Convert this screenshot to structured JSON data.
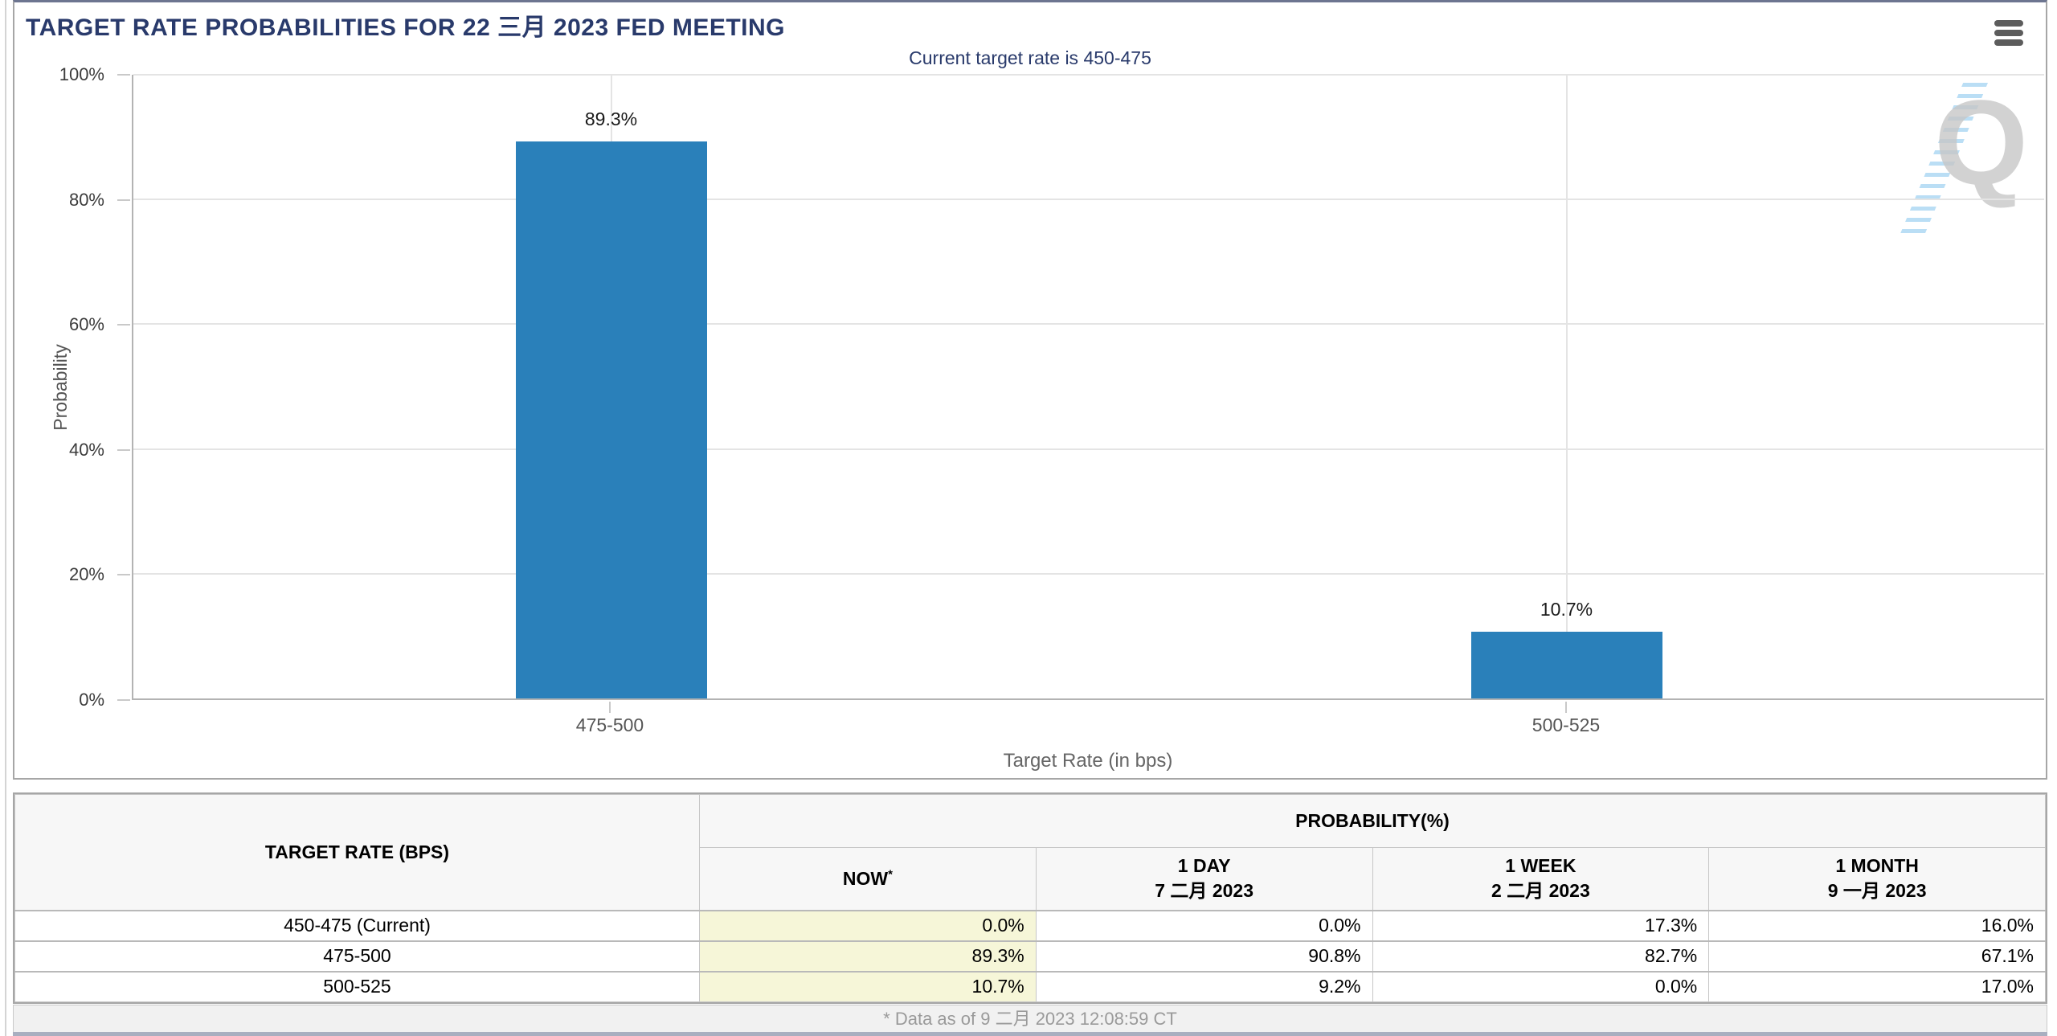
{
  "page": {
    "title": "TARGET RATE PROBABILITIES FOR 22 三月 2023 FED MEETING"
  },
  "icons": {
    "menu": "hamburger-icon",
    "watermark_letter": "Q"
  },
  "colors": {
    "accent_navy": "#293a6b",
    "bar_blue": "#2a80ba",
    "now_column_highlight": "#f6f6d8"
  },
  "chart_data": {
    "type": "bar",
    "title": "Current target rate is 450-475",
    "categories": [
      "475-500",
      "500-525"
    ],
    "values": [
      89.3,
      10.7
    ],
    "value_labels": [
      "89.3%",
      "10.7%"
    ],
    "xlabel": "Target Rate (in bps)",
    "ylabel": "Probability",
    "ylim": [
      0,
      100
    ],
    "yticks": [
      "0%",
      "20%",
      "40%",
      "60%",
      "80%",
      "100%"
    ],
    "grid": true,
    "legend": "none",
    "bar_color": "#2a80ba"
  },
  "table": {
    "col1_header": "TARGET RATE (BPS)",
    "group_header": "PROBABILITY(%)",
    "columns": [
      {
        "label": "NOW",
        "sup": "*",
        "date": ""
      },
      {
        "label": "1 DAY",
        "date": "7 二月 2023"
      },
      {
        "label": "1 WEEK",
        "date": "2 二月 2023"
      },
      {
        "label": "1 MONTH",
        "date": "9 一月 2023"
      }
    ],
    "rows": [
      {
        "target_rate": "450-475 (Current)",
        "values": [
          "0.0%",
          "0.0%",
          "17.3%",
          "16.0%"
        ]
      },
      {
        "target_rate": "475-500",
        "values": [
          "89.3%",
          "90.8%",
          "82.7%",
          "67.1%"
        ]
      },
      {
        "target_rate": "500-525",
        "values": [
          "10.7%",
          "9.2%",
          "0.0%",
          "17.0%"
        ]
      }
    ],
    "footnote": "* Data as of 9 二月 2023 12:08:59 CT"
  }
}
